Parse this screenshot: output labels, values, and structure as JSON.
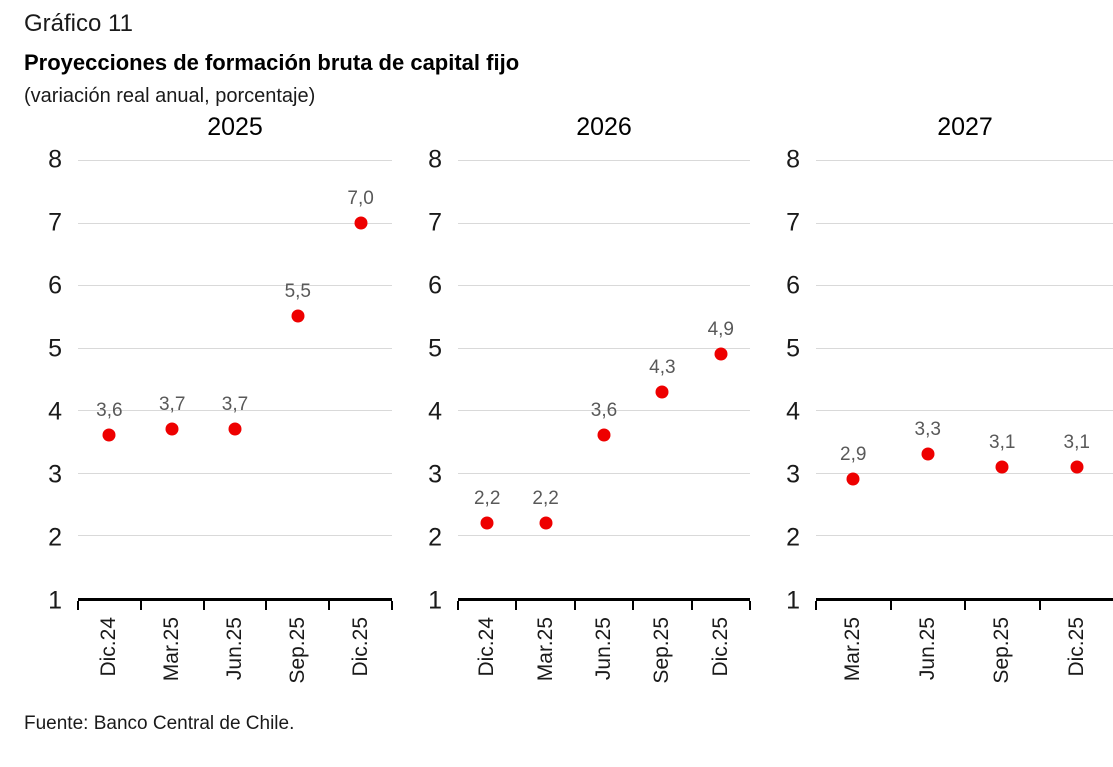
{
  "header": {
    "chart_number": "Gráfico 11",
    "title": "Proyecciones de formación bruta de capital fijo",
    "subtitle": "(variación real anual, porcentaje)"
  },
  "footer": {
    "source": "Fuente: Banco Central de Chile."
  },
  "chart_data": {
    "type": "scatter",
    "title": "Proyecciones de formación bruta de capital fijo",
    "ylabel": "variación real anual, porcentaje",
    "ylim": [
      1,
      8
    ],
    "y_ticks": [
      8,
      7,
      6,
      5,
      4,
      3,
      2,
      1
    ],
    "grid": "horizontal",
    "colors": {
      "point": "#ee0000",
      "gridline": "#d9d9d9",
      "axis": "#000000",
      "data_label": "#595959"
    },
    "panels": [
      {
        "title": "2025",
        "categories": [
          "Dic.24",
          "Mar.25",
          "Jun.25",
          "Sep.25",
          "Dic.25"
        ],
        "values": [
          3.6,
          3.7,
          3.7,
          5.5,
          7.0
        ],
        "labels": [
          "3,6",
          "3,7",
          "3,7",
          "5,5",
          "7,0"
        ]
      },
      {
        "title": "2026",
        "categories": [
          "Dic.24",
          "Mar.25",
          "Jun.25",
          "Sep.25",
          "Dic.25"
        ],
        "values": [
          2.2,
          2.2,
          3.6,
          4.3,
          4.9
        ],
        "labels": [
          "2,2",
          "2,2",
          "3,6",
          "4,3",
          "4,9"
        ]
      },
      {
        "title": "2027",
        "categories": [
          "Mar.25",
          "Jun.25",
          "Sep.25",
          "Dic.25"
        ],
        "values": [
          2.9,
          3.3,
          3.1,
          3.1
        ],
        "labels": [
          "2,9",
          "3,3",
          "3,1",
          "3,1"
        ]
      }
    ]
  }
}
